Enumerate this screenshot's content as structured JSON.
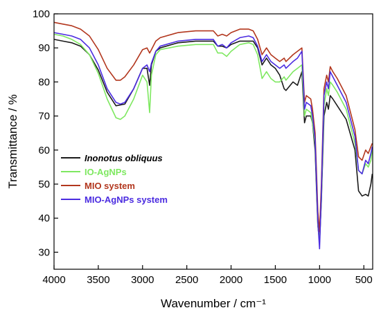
{
  "chart_data": {
    "type": "line",
    "xlabel": "Wavenumber / cm⁻¹",
    "ylabel": "Transmittance / %",
    "xlim": [
      4000,
      400
    ],
    "x_reversed": true,
    "ylim": [
      25,
      100
    ],
    "xticks": [
      4000,
      3500,
      3000,
      2500,
      2000,
      1500,
      1000,
      500
    ],
    "yticks": [
      30,
      40,
      50,
      60,
      70,
      80,
      90,
      100
    ],
    "grid": false,
    "legend_position": "bottom-left",
    "series": [
      {
        "name": "Inonotus obliquus",
        "italic": true,
        "color": "#1a1a1a",
        "x": [
          4000,
          3900,
          3800,
          3700,
          3600,
          3500,
          3400,
          3300,
          3200,
          3100,
          3000,
          2950,
          2920,
          2900,
          2850,
          2800,
          2600,
          2400,
          2300,
          2200,
          2150,
          2100,
          2050,
          2000,
          1900,
          1800,
          1750,
          1700,
          1650,
          1600,
          1550,
          1500,
          1450,
          1400,
          1380,
          1300,
          1250,
          1200,
          1170,
          1150,
          1100,
          1080,
          1050,
          1030,
          1020,
          1000,
          980,
          950,
          920,
          900,
          880,
          850,
          800,
          700,
          600,
          560,
          520,
          480,
          450,
          420,
          405
        ],
        "y": [
          92.5,
          92,
          91.5,
          90.5,
          88,
          83.5,
          77,
          73,
          73.5,
          78,
          84,
          84,
          79,
          85,
          89,
          90,
          91.5,
          92,
          92,
          92,
          90.5,
          90.5,
          90,
          91,
          92,
          92,
          92,
          90,
          85,
          87,
          85,
          84,
          82,
          78,
          77.5,
          80,
          79,
          83,
          68,
          70,
          70,
          68,
          60,
          45,
          38,
          33,
          45,
          70,
          74,
          72,
          76,
          75,
          73,
          69,
          60,
          48,
          46.5,
          47,
          46.5,
          50,
          53
        ]
      },
      {
        "name": "IO-AgNPs",
        "italic": false,
        "color": "#7ee860",
        "x": [
          4000,
          3900,
          3800,
          3700,
          3600,
          3500,
          3400,
          3300,
          3250,
          3200,
          3100,
          3000,
          2950,
          2920,
          2900,
          2850,
          2800,
          2600,
          2400,
          2300,
          2200,
          2150,
          2100,
          2050,
          2000,
          1900,
          1800,
          1750,
          1700,
          1650,
          1600,
          1550,
          1500,
          1450,
          1400,
          1380,
          1300,
          1250,
          1200,
          1170,
          1150,
          1100,
          1080,
          1050,
          1030,
          1020,
          1000,
          980,
          950,
          920,
          900,
          880,
          850,
          800,
          700,
          600,
          560,
          520,
          480,
          450,
          420,
          405
        ],
        "y": [
          94,
          93.5,
          92.5,
          91,
          88,
          82.5,
          75,
          69.5,
          69,
          70,
          75,
          82,
          80,
          71,
          82,
          88,
          89.5,
          90.5,
          91,
          91,
          91,
          88.5,
          88.5,
          87.5,
          89,
          91,
          91.5,
          91,
          88,
          81,
          83,
          81,
          80,
          80,
          81.5,
          80.5,
          83,
          84,
          85,
          70,
          72,
          71,
          68,
          62,
          47,
          38,
          33,
          46,
          73,
          78,
          76,
          80,
          79,
          77,
          72,
          62,
          54,
          53,
          56,
          55,
          57,
          60
        ]
      },
      {
        "name": "MIO system",
        "italic": false,
        "color": "#b2361d",
        "x": [
          4000,
          3900,
          3800,
          3700,
          3600,
          3500,
          3400,
          3300,
          3250,
          3200,
          3100,
          3000,
          2950,
          2920,
          2900,
          2850,
          2800,
          2600,
          2400,
          2300,
          2200,
          2150,
          2100,
          2050,
          2000,
          1900,
          1800,
          1750,
          1700,
          1650,
          1600,
          1550,
          1500,
          1450,
          1400,
          1380,
          1300,
          1250,
          1200,
          1170,
          1150,
          1100,
          1080,
          1050,
          1030,
          1020,
          1000,
          980,
          950,
          920,
          900,
          880,
          850,
          800,
          700,
          600,
          560,
          520,
          480,
          450,
          420,
          405
        ],
        "y": [
          97.5,
          97,
          96.5,
          95.5,
          93.5,
          89.5,
          84,
          80.5,
          80.5,
          81.5,
          85,
          89.5,
          90,
          88.5,
          89.5,
          92,
          93,
          94.5,
          95,
          95,
          95,
          93.5,
          94,
          93.5,
          94.5,
          95.5,
          95.5,
          95,
          92.5,
          88,
          90,
          88,
          87,
          86,
          87,
          86,
          88,
          89,
          90,
          74,
          76,
          75,
          72,
          65,
          50,
          42,
          36,
          50,
          78,
          82,
          80,
          84.5,
          83,
          81,
          76,
          66,
          58,
          57,
          60,
          59,
          61,
          62
        ]
      },
      {
        "name": "MIO-AgNPs system",
        "italic": false,
        "color": "#4a2be0",
        "x": [
          4000,
          3900,
          3800,
          3700,
          3600,
          3500,
          3400,
          3300,
          3250,
          3200,
          3100,
          3000,
          2950,
          2920,
          2900,
          2850,
          2800,
          2600,
          2400,
          2300,
          2200,
          2150,
          2100,
          2050,
          2000,
          1900,
          1800,
          1750,
          1700,
          1650,
          1600,
          1550,
          1500,
          1450,
          1400,
          1380,
          1300,
          1250,
          1200,
          1170,
          1150,
          1100,
          1080,
          1050,
          1030,
          1020,
          1000,
          980,
          950,
          920,
          900,
          880,
          850,
          800,
          700,
          600,
          560,
          520,
          480,
          450,
          420,
          405
        ],
        "y": [
          94.5,
          94,
          93.5,
          92.5,
          90,
          85,
          78,
          74,
          73.5,
          74,
          78,
          84,
          85,
          83,
          85.5,
          89,
          90.5,
          92,
          92.5,
          92.5,
          92.5,
          90.5,
          91,
          90,
          91.5,
          93,
          93.5,
          93,
          90.5,
          86,
          88,
          86,
          85,
          84,
          85,
          84,
          86,
          87,
          89,
          72,
          74,
          73,
          70,
          63,
          47,
          39,
          31,
          47,
          76,
          80,
          78,
          83,
          81.5,
          79,
          74,
          64,
          54,
          53,
          57,
          56,
          59,
          61
        ]
      }
    ]
  }
}
